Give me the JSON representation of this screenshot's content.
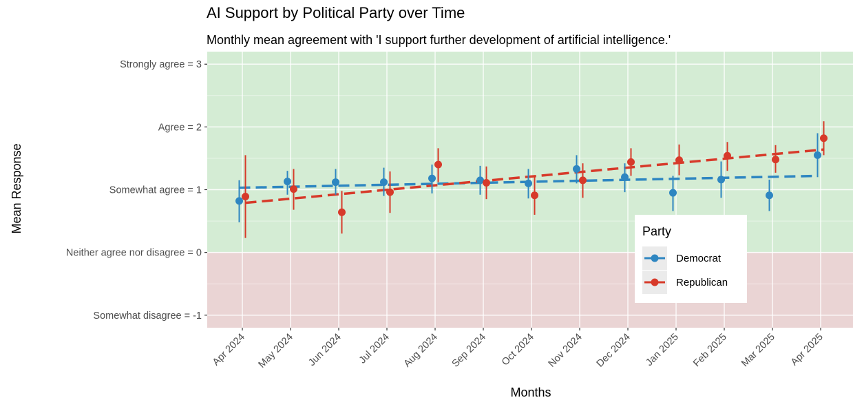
{
  "chart_data": {
    "type": "scatter",
    "title": "AI Support by Political Party over Time",
    "subtitle": "Monthly mean agreement with 'I support further development of artificial intelligence.'",
    "xlabel": "Months",
    "ylabel": "Mean Response",
    "categories": [
      "Apr 2024",
      "May 2024",
      "Jun 2024",
      "Jul 2024",
      "Aug 2024",
      "Sep 2024",
      "Oct 2024",
      "Nov 2024",
      "Dec 2024",
      "Jan 2025",
      "Feb 2025",
      "Mar 2025",
      "Apr 2025"
    ],
    "ylim": [
      -1.2,
      3.2
    ],
    "yticks": [
      {
        "value": 3,
        "label": "Strongly agree = 3"
      },
      {
        "value": 2,
        "label": "Agree = 2"
      },
      {
        "value": 1,
        "label": "Somewhat agree = 1"
      },
      {
        "value": 0,
        "label": "Neither agree nor disagree = 0"
      },
      {
        "value": -1,
        "label": "Somewhat disagree = -1"
      }
    ],
    "background_regions": [
      {
        "from": 0,
        "to": 3.2,
        "color": "#d4ecd4"
      },
      {
        "from": -1.2,
        "to": 0,
        "color": "#ead4d4"
      }
    ],
    "grid": true,
    "legend": {
      "title": "Party",
      "position": "right-inside"
    },
    "series": [
      {
        "name": "Democrat",
        "color": "#2e86c1",
        "values": [
          0.82,
          1.13,
          1.12,
          1.12,
          1.18,
          1.15,
          1.1,
          1.33,
          1.2,
          0.95,
          1.16,
          0.91,
          1.55
        ],
        "lower": [
          0.48,
          0.92,
          0.92,
          0.9,
          0.94,
          0.92,
          0.86,
          1.1,
          0.96,
          0.66,
          0.87,
          0.66,
          1.2
        ],
        "upper": [
          1.15,
          1.3,
          1.33,
          1.35,
          1.4,
          1.38,
          1.33,
          1.55,
          1.42,
          1.22,
          1.45,
          1.16,
          1.9
        ],
        "trend": [
          1.03,
          1.22
        ]
      },
      {
        "name": "Republican",
        "color": "#d73a2a",
        "values": [
          0.89,
          1.01,
          0.64,
          0.96,
          1.4,
          1.11,
          0.91,
          1.15,
          1.44,
          1.47,
          1.54,
          1.48,
          1.82
        ],
        "lower": [
          0.23,
          0.68,
          0.3,
          0.63,
          1.12,
          0.85,
          0.6,
          0.87,
          1.22,
          1.23,
          1.3,
          1.27,
          1.55
        ],
        "upper": [
          1.55,
          1.33,
          0.98,
          1.29,
          1.66,
          1.37,
          1.21,
          1.42,
          1.66,
          1.72,
          1.76,
          1.71,
          2.09
        ],
        "trend": [
          0.79,
          1.64
        ]
      }
    ]
  }
}
